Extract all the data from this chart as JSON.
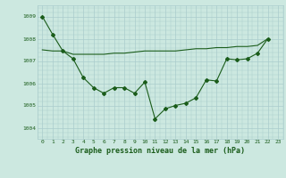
{
  "title": "Graphe pression niveau de la mer (hPa)",
  "background_color": "#cce8e0",
  "grid_color": "#aacccc",
  "line_color": "#1a5c1a",
  "marker_color": "#1a5c1a",
  "xlim": [
    -0.5,
    23.5
  ],
  "ylim": [
    1003.5,
    1009.5
  ],
  "yticks": [
    1004,
    1005,
    1006,
    1007,
    1008,
    1009
  ],
  "xtick_labels": [
    "0",
    "1",
    "2",
    "3",
    "4",
    "5",
    "6",
    "7",
    "8",
    "9",
    "10",
    "11",
    "12",
    "13",
    "14",
    "15",
    "16",
    "17",
    "18",
    "19",
    "20",
    "21",
    "22",
    "23"
  ],
  "series_marker_x": [
    0,
    1,
    2,
    3,
    4,
    5,
    6,
    7,
    8,
    9,
    10,
    11,
    12,
    13,
    14,
    15,
    16,
    17,
    18,
    19,
    20,
    21,
    22
  ],
  "series_marker_y": [
    1009.0,
    1008.2,
    1007.45,
    1007.1,
    1006.25,
    1005.8,
    1005.55,
    1005.8,
    1005.8,
    1005.55,
    1006.05,
    1004.4,
    1004.85,
    1005.0,
    1005.1,
    1005.35,
    1006.15,
    1006.1,
    1007.1,
    1007.05,
    1007.1,
    1007.35,
    1008.0
  ],
  "series_flat_x": [
    0,
    1,
    2,
    3,
    4,
    5,
    6,
    7,
    8,
    9,
    10,
    11,
    12,
    13,
    14,
    15,
    16,
    17,
    18,
    19,
    20,
    21,
    22
  ],
  "series_flat_y": [
    1007.5,
    1007.45,
    1007.45,
    1007.3,
    1007.3,
    1007.3,
    1007.3,
    1007.35,
    1007.35,
    1007.4,
    1007.45,
    1007.45,
    1007.45,
    1007.45,
    1007.5,
    1007.55,
    1007.55,
    1007.6,
    1007.6,
    1007.65,
    1007.65,
    1007.7,
    1008.0
  ],
  "title_fontsize": 6.0,
  "tick_fontsize": 4.5
}
